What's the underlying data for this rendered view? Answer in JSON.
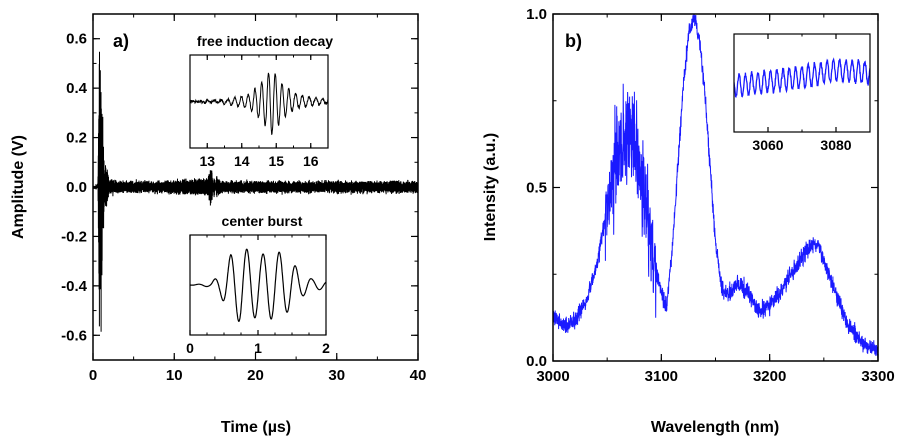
{
  "chart_data": [
    {
      "type": "line",
      "panel_label": "a)",
      "xlabel": "Time (µs)",
      "ylabel": "Amplitude (V)",
      "xlim": [
        0,
        40
      ],
      "ylim": [
        -0.7,
        0.7
      ],
      "xticks": [
        0,
        10,
        20,
        30,
        40
      ],
      "xtick_labels": [
        "0",
        "10",
        "20",
        "30",
        "40"
      ],
      "yticks": [
        0.6,
        0.4,
        0.2,
        0.0,
        -0.2,
        -0.4,
        -0.6
      ],
      "ytick_labels": [
        "0.6",
        "0.4",
        "0.2",
        "0.0",
        "-0.2",
        "-0.4",
        "-0.6"
      ],
      "color": "#000000",
      "grid": false,
      "series": [
        {
          "x": [
            0,
            0.6,
            0.8,
            0.9,
            1.0,
            1.1,
            1.2,
            1.3,
            1.5,
            2.0,
            3,
            8,
            14.0,
            14.6,
            14.9,
            15.2,
            16,
            20,
            30,
            40
          ],
          "y": [
            0.0,
            0.0,
            0.62,
            -0.6,
            0.6,
            -0.5,
            0.3,
            -0.2,
            0.1,
            0.03,
            0.02,
            0.02,
            0.03,
            0.08,
            -0.05,
            0.04,
            0.02,
            0.02,
            0.02,
            0.02
          ]
        }
      ],
      "insets": [
        {
          "title": "free induction decay",
          "xlim": [
            12.5,
            16.5
          ],
          "xticks": [
            13,
            14,
            15,
            16
          ],
          "xtick_labels": [
            "13",
            "14",
            "15",
            "16"
          ],
          "x": [
            12.5,
            13.5,
            14.2,
            14.6,
            14.8,
            14.9,
            15.0,
            15.2,
            15.6,
            16.5
          ],
          "y": [
            0.0,
            0.05,
            0.2,
            0.6,
            0.9,
            1.0,
            0.8,
            0.5,
            0.2,
            0.05
          ]
        },
        {
          "title": "center burst",
          "xlim": [
            0,
            2
          ],
          "xticks": [
            0,
            1,
            2
          ],
          "xtick_labels": [
            "0",
            "1",
            "2"
          ],
          "x": [
            0.0,
            0.3,
            0.45,
            0.6,
            0.75,
            0.9,
            1.05,
            1.2,
            1.35,
            1.5,
            1.65,
            1.8,
            2.0
          ],
          "y": [
            0.0,
            0.05,
            0.3,
            0.8,
            1.0,
            0.9,
            0.8,
            0.9,
            0.85,
            0.6,
            0.3,
            0.15,
            0.1
          ]
        }
      ]
    },
    {
      "type": "line",
      "panel_label": "b)",
      "xlabel": "Wavelength (nm)",
      "ylabel": "Intensity (a.u.)",
      "xlim": [
        3000,
        3300
      ],
      "ylim": [
        0.0,
        1.0
      ],
      "xticks": [
        3000,
        3100,
        3200,
        3300
      ],
      "xtick_labels": [
        "3000",
        "3100",
        "3200",
        "3300"
      ],
      "yticks": [
        0.0,
        0.5,
        1.0
      ],
      "ytick_labels": [
        "0.0",
        "0.5",
        "1.0"
      ],
      "color": "#1a1aff",
      "grid": false,
      "series": [
        {
          "x": [
            3000,
            3010,
            3020,
            3030,
            3040,
            3050,
            3060,
            3070,
            3080,
            3090,
            3100,
            3105,
            3110,
            3115,
            3120,
            3125,
            3130,
            3135,
            3140,
            3145,
            3150,
            3155,
            3160,
            3170,
            3180,
            3190,
            3200,
            3210,
            3220,
            3230,
            3240,
            3245,
            3250,
            3260,
            3270,
            3280,
            3290,
            3300
          ],
          "y": [
            0.13,
            0.1,
            0.12,
            0.17,
            0.27,
            0.44,
            0.6,
            0.66,
            0.58,
            0.34,
            0.2,
            0.16,
            0.32,
            0.55,
            0.78,
            0.94,
            0.99,
            0.93,
            0.78,
            0.56,
            0.34,
            0.22,
            0.19,
            0.22,
            0.2,
            0.14,
            0.16,
            0.2,
            0.25,
            0.3,
            0.34,
            0.33,
            0.29,
            0.21,
            0.12,
            0.07,
            0.04,
            0.03
          ]
        }
      ],
      "insets": [
        {
          "title": "",
          "xlim": [
            3050,
            3090
          ],
          "xticks": [
            3060,
            3080
          ],
          "xtick_labels": [
            "3060",
            "3080"
          ],
          "x": [
            3050,
            3060,
            3070,
            3080,
            3090
          ],
          "y": [
            0.1,
            0.15,
            0.2,
            0.28,
            0.25
          ]
        }
      ]
    }
  ]
}
